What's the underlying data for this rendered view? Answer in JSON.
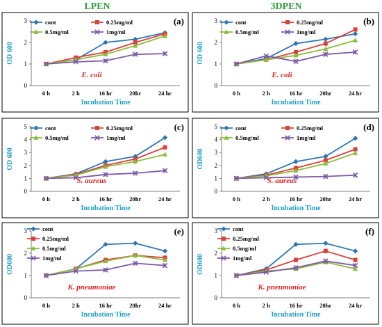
{
  "column_titles": [
    "LPEN",
    "3DPEN"
  ],
  "series_style": [
    {
      "name": "cont",
      "color": "#2e75b6",
      "marker": "diamond"
    },
    {
      "name": "0.25mg/ml",
      "color": "#d9413a",
      "marker": "square"
    },
    {
      "name": "0.5mg/ml",
      "color": "#8dbb3c",
      "marker": "triangle"
    },
    {
      "name": "1mg/ml",
      "color": "#7a5aa6",
      "marker": "x"
    }
  ],
  "chart_data": [
    {
      "type": "line",
      "panel_label": "(a)",
      "organism": "E. coli",
      "xlabel": "Incubation Time",
      "ylabel": "OD 600",
      "categories": [
        "0 h",
        "2 h",
        "16 hr",
        "20hr",
        "24 hr"
      ],
      "ylim": [
        0,
        3
      ],
      "yticks": [
        0,
        1,
        2,
        3
      ],
      "legend": "top",
      "series": [
        {
          "name": "cont",
          "values": [
            1.0,
            1.2,
            2.0,
            2.15,
            2.45
          ]
        },
        {
          "name": "0.25mg/ml",
          "values": [
            1.0,
            1.3,
            1.55,
            2.0,
            2.4
          ]
        },
        {
          "name": "0.5mg/ml",
          "values": [
            1.0,
            1.2,
            1.45,
            1.85,
            2.3
          ]
        },
        {
          "name": "1mg/ml",
          "values": [
            1.0,
            1.1,
            1.15,
            1.45,
            1.48
          ]
        }
      ]
    },
    {
      "type": "line",
      "panel_label": "(b)",
      "organism": "E. coli",
      "xlabel": "Incubation Time",
      "ylabel": "OD 600",
      "categories": [
        "0 h",
        "2 h",
        "16 hr",
        "20hr",
        "24 hr"
      ],
      "ylim": [
        0,
        3
      ],
      "yticks": [
        0,
        1,
        2,
        3
      ],
      "legend": "top",
      "series": [
        {
          "name": "cont",
          "values": [
            1.0,
            1.25,
            1.95,
            2.15,
            2.4
          ]
        },
        {
          "name": "0.25mg/ml",
          "values": [
            1.0,
            1.2,
            1.55,
            1.95,
            2.6
          ]
        },
        {
          "name": "0.5mg/ml",
          "values": [
            1.0,
            1.2,
            1.4,
            1.7,
            2.1
          ]
        },
        {
          "name": "1mg/ml",
          "values": [
            1.0,
            1.38,
            1.12,
            1.45,
            1.55
          ]
        }
      ]
    },
    {
      "type": "line",
      "panel_label": "(c)",
      "organism": "S. aureus",
      "xlabel": "Incubation Time",
      "ylabel": "OD 600",
      "categories": [
        "0 h",
        "2 h",
        "16 hr",
        "20hr",
        "24 hr"
      ],
      "ylim": [
        0,
        5
      ],
      "yticks": [
        0,
        1,
        2,
        3,
        4,
        5
      ],
      "legend": "top",
      "series": [
        {
          "name": "cont",
          "values": [
            1.0,
            1.35,
            2.3,
            2.7,
            4.15
          ]
        },
        {
          "name": "0.25mg/ml",
          "values": [
            1.0,
            1.3,
            2.0,
            2.5,
            3.4
          ]
        },
        {
          "name": "0.5mg/ml",
          "values": [
            1.0,
            1.25,
            1.9,
            2.3,
            2.85
          ]
        },
        {
          "name": "1mg/ml",
          "values": [
            1.0,
            1.05,
            1.3,
            1.4,
            1.6
          ]
        }
      ]
    },
    {
      "type": "line",
      "panel_label": "(d)",
      "organism": "S. aureus",
      "xlabel": "Incubation Time",
      "ylabel": "OD600",
      "categories": [
        "0 h",
        "2 h",
        "16 hr",
        "20hr",
        "24 hr"
      ],
      "ylim": [
        0,
        5
      ],
      "yticks": [
        0,
        1,
        2,
        3,
        4,
        5
      ],
      "legend": "top",
      "series": [
        {
          "name": "cont",
          "values": [
            1.0,
            1.35,
            2.3,
            2.7,
            4.1
          ]
        },
        {
          "name": "0.25mg/ml",
          "values": [
            1.0,
            1.25,
            1.8,
            2.4,
            3.25
          ]
        },
        {
          "name": "0.5mg/ml",
          "values": [
            1.0,
            1.2,
            1.6,
            2.15,
            2.95
          ]
        },
        {
          "name": "1mg/ml",
          "values": [
            1.0,
            1.05,
            1.1,
            1.15,
            1.25
          ]
        }
      ]
    },
    {
      "type": "line",
      "panel_label": "(e)",
      "organism": "K. pneumoniae",
      "xlabel": "Incubation Time",
      "ylabel": "OD600",
      "categories": [
        "0 h",
        "2 h",
        "16 hr",
        "20hr",
        "24 hr"
      ],
      "ylim": [
        0,
        3
      ],
      "yticks": [
        0,
        1,
        2,
        3
      ],
      "legend": "top-left",
      "series": [
        {
          "name": "cont",
          "values": [
            1.0,
            1.3,
            2.4,
            2.45,
            2.1
          ]
        },
        {
          "name": "0.25mg/ml",
          "values": [
            1.0,
            1.3,
            1.7,
            1.9,
            1.8
          ]
        },
        {
          "name": "0.5mg/ml",
          "values": [
            1.0,
            1.3,
            1.65,
            1.9,
            1.7
          ]
        },
        {
          "name": "1mg/ml",
          "values": [
            1.0,
            1.2,
            1.25,
            1.55,
            1.45
          ]
        }
      ]
    },
    {
      "type": "line",
      "panel_label": "(f)",
      "organism": "K. pneumoniae",
      "xlabel": "Incubation Time",
      "ylabel": "OD600",
      "categories": [
        "0 h",
        "2 h",
        "16 hr",
        "20hr",
        "24 hr"
      ],
      "ylim": [
        0,
        3
      ],
      "yticks": [
        0,
        1,
        2,
        3
      ],
      "legend": "top-left",
      "series": [
        {
          "name": "cont",
          "values": [
            1.0,
            1.3,
            2.4,
            2.45,
            2.1
          ]
        },
        {
          "name": "0.25mg/ml",
          "values": [
            1.0,
            1.25,
            1.7,
            2.1,
            1.7
          ]
        },
        {
          "name": "0.5mg/ml",
          "values": [
            1.0,
            1.2,
            1.3,
            1.6,
            1.3
          ]
        },
        {
          "name": "1mg/ml",
          "values": [
            1.0,
            1.15,
            1.35,
            1.65,
            1.45
          ]
        }
      ]
    }
  ]
}
